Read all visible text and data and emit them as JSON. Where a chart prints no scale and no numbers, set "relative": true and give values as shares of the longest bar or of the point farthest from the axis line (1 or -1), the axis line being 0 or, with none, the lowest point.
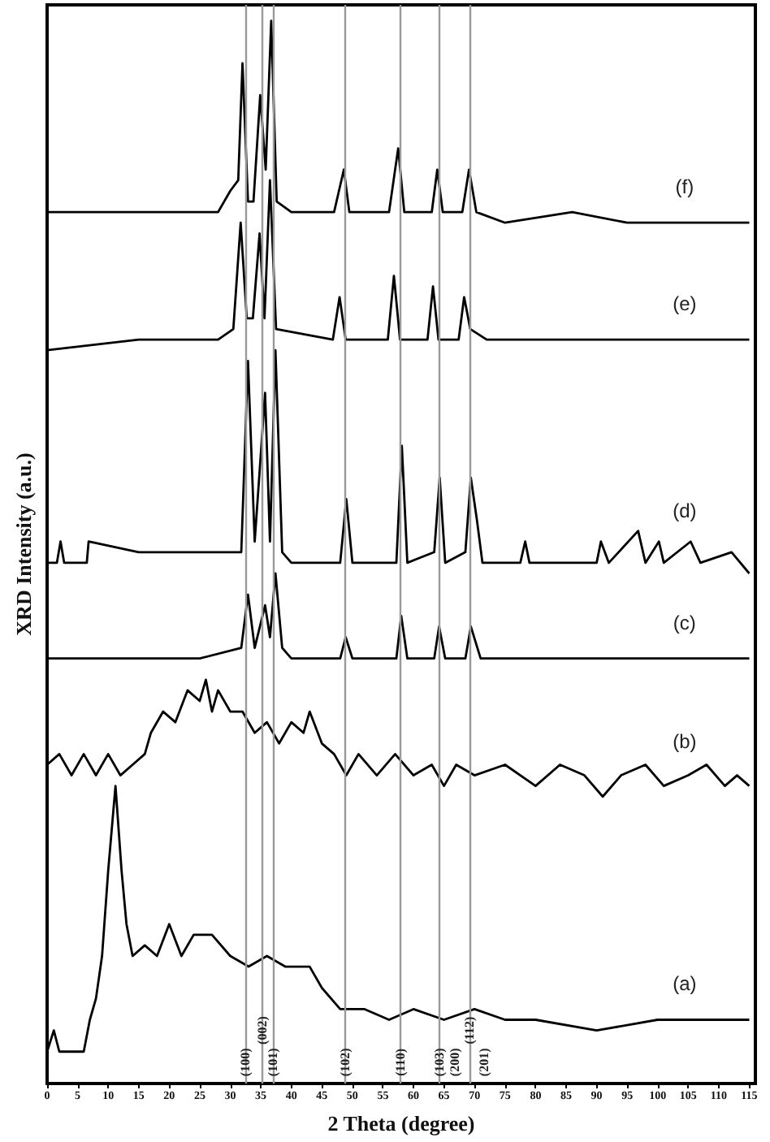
{
  "chart_data": {
    "type": "line",
    "relative": true,
    "xlabel": "2 Theta (degree)",
    "ylabel": "XRD Intensity (a.u.)",
    "legend": false,
    "grid": false,
    "marker": "none",
    "line_style": "solid",
    "xlim": [
      0,
      116
    ],
    "xticks": [
      0,
      5,
      10,
      15,
      20,
      25,
      30,
      35,
      40,
      45,
      50,
      55,
      60,
      65,
      70,
      75,
      80,
      85,
      90,
      95,
      100,
      105,
      110,
      115
    ],
    "series": [
      {
        "name": "(a)",
        "color": "#000000",
        "x": [
          0,
          1.1,
          2,
          6,
          7,
          8,
          9,
          10,
          11.2,
          12.2,
          13,
          14,
          16,
          18,
          20,
          22,
          24,
          27,
          30,
          33,
          36,
          39,
          43,
          45,
          48,
          52,
          56,
          60,
          65,
          70,
          75,
          80,
          90,
          100,
          110,
          115
        ],
        "values": [
          0.03,
          0.05,
          0.03,
          0.03,
          0.06,
          0.08,
          0.12,
          0.2,
          0.28,
          0.2,
          0.15,
          0.12,
          0.13,
          0.12,
          0.15,
          0.12,
          0.14,
          0.14,
          0.12,
          0.11,
          0.12,
          0.11,
          0.11,
          0.09,
          0.07,
          0.07,
          0.06,
          0.07,
          0.06,
          0.07,
          0.06,
          0.06,
          0.05,
          0.06,
          0.06,
          0.06
        ]
      },
      {
        "name": "(b)",
        "color": "#000000",
        "x": [
          0,
          2,
          4,
          6,
          8,
          10,
          12,
          14,
          16,
          17,
          19,
          21,
          23,
          25,
          26,
          27,
          28,
          30,
          32,
          34,
          36,
          38,
          40,
          42,
          43,
          45,
          47,
          49,
          51,
          54,
          57,
          60,
          63,
          65,
          67,
          70,
          75,
          80,
          84,
          88,
          91,
          94,
          98,
          101,
          105,
          108,
          111,
          113,
          115
        ],
        "values": [
          0.3,
          0.31,
          0.29,
          0.31,
          0.29,
          0.31,
          0.29,
          0.3,
          0.31,
          0.33,
          0.35,
          0.34,
          0.37,
          0.36,
          0.38,
          0.35,
          0.37,
          0.35,
          0.35,
          0.33,
          0.34,
          0.32,
          0.34,
          0.33,
          0.35,
          0.32,
          0.31,
          0.29,
          0.31,
          0.29,
          0.31,
          0.29,
          0.3,
          0.28,
          0.3,
          0.29,
          0.3,
          0.28,
          0.3,
          0.29,
          0.27,
          0.29,
          0.3,
          0.28,
          0.29,
          0.3,
          0.28,
          0.29,
          0.28
        ]
      },
      {
        "name": "(c)",
        "color": "#000000",
        "x": [
          0,
          25,
          31.8,
          32.9,
          34,
          35.7,
          36.5,
          37.4,
          38.5,
          40,
          48,
          48.9,
          50,
          57.2,
          58,
          59,
          63.4,
          64.2,
          65.2,
          68.5,
          69.4,
          71,
          115
        ],
        "values": [
          0.4,
          0.4,
          0.41,
          0.46,
          0.41,
          0.45,
          0.42,
          0.48,
          0.41,
          0.4,
          0.4,
          0.42,
          0.4,
          0.4,
          0.44,
          0.4,
          0.4,
          0.43,
          0.4,
          0.4,
          0.43,
          0.4,
          0.4
        ]
      },
      {
        "name": "(d)",
        "color": "#000000",
        "x": [
          0,
          1.6,
          2.2,
          2.8,
          6.5,
          6.8,
          15,
          25,
          31.8,
          32.9,
          34,
          35.7,
          36.5,
          37.4,
          38.5,
          40,
          48,
          49,
          50,
          57.2,
          58.1,
          59,
          63.4,
          64.3,
          65.2,
          68.5,
          69.4,
          70.4,
          71.3,
          77.5,
          78.3,
          79,
          90,
          90.7,
          92,
          96.8,
          98,
          100.2,
          101,
          105.4,
          107,
          112.1,
          115
        ],
        "values": [
          0.49,
          0.49,
          0.51,
          0.49,
          0.49,
          0.51,
          0.5,
          0.5,
          0.5,
          0.68,
          0.51,
          0.65,
          0.51,
          0.69,
          0.5,
          0.49,
          0.49,
          0.55,
          0.49,
          0.49,
          0.6,
          0.49,
          0.5,
          0.57,
          0.49,
          0.5,
          0.57,
          0.53,
          0.49,
          0.49,
          0.51,
          0.49,
          0.49,
          0.51,
          0.49,
          0.52,
          0.49,
          0.51,
          0.49,
          0.51,
          0.49,
          0.5,
          0.48
        ]
      },
      {
        "name": "(e)",
        "color": "#000000",
        "x": [
          0,
          15,
          28,
          30.5,
          31.7,
          32.7,
          33.7,
          34.8,
          35.6,
          36.5,
          37.5,
          46.8,
          47.9,
          48.9,
          55.8,
          56.8,
          57.8,
          62.3,
          63.2,
          64.1,
          67.4,
          68.3,
          69.3,
          72,
          100,
          106,
          115
        ],
        "values": [
          0.69,
          0.7,
          0.7,
          0.71,
          0.81,
          0.72,
          0.72,
          0.8,
          0.72,
          0.85,
          0.71,
          0.7,
          0.74,
          0.7,
          0.7,
          0.76,
          0.7,
          0.7,
          0.75,
          0.7,
          0.7,
          0.74,
          0.71,
          0.7,
          0.7,
          0.7,
          0.7
        ]
      },
      {
        "name": "(f)",
        "color": "#000000",
        "x": [
          0,
          10,
          20,
          28,
          30,
          31.3,
          32,
          32.9,
          33.8,
          34.9,
          35.8,
          36.7,
          37.6,
          40,
          47,
          48.6,
          49.5,
          56,
          57.5,
          58.5,
          63,
          63.9,
          64.8,
          68,
          69.1,
          70.3,
          75,
          86,
          95,
          105,
          115
        ],
        "values": [
          0.82,
          0.82,
          0.82,
          0.82,
          0.84,
          0.85,
          0.96,
          0.83,
          0.83,
          0.93,
          0.86,
          1,
          0.83,
          0.82,
          0.82,
          0.86,
          0.82,
          0.82,
          0.88,
          0.82,
          0.82,
          0.86,
          0.82,
          0.82,
          0.86,
          0.82,
          0.81,
          0.82,
          0.81,
          0.81,
          0.81
        ]
      }
    ],
    "ref_lines": [
      {
        "axis": "x",
        "value": 32.5,
        "color": "#999999"
      },
      {
        "axis": "x",
        "value": 35.3,
        "color": "#999999"
      },
      {
        "axis": "x",
        "value": 37,
        "color": "#999999"
      },
      {
        "axis": "x",
        "value": 48.8,
        "color": "#999999"
      },
      {
        "axis": "x",
        "value": 57.9,
        "color": "#999999"
      },
      {
        "axis": "x",
        "value": 64.2,
        "color": "#999999"
      },
      {
        "axis": "x",
        "value": 69.2,
        "color": "#999999"
      }
    ],
    "annotations": [
      {
        "text": "(100)",
        "x": 32.5,
        "y": 0.02
      },
      {
        "text": "(002)",
        "x": 35.3,
        "y": 0.05
      },
      {
        "text": "(101)",
        "x": 37,
        "y": 0.02
      },
      {
        "text": "(102)",
        "x": 48.8,
        "y": 0.02
      },
      {
        "text": "(110)",
        "x": 57.9,
        "y": 0.02
      },
      {
        "text": "(103)",
        "x": 64.2,
        "y": 0.02
      },
      {
        "text": "(200)",
        "x": 69.2,
        "y": 0.02
      },
      {
        "text": "(112)",
        "x": 69.2,
        "y": 0.05
      },
      {
        "text": "(201)",
        "x": 69.2,
        "y": 0.02
      }
    ]
  }
}
